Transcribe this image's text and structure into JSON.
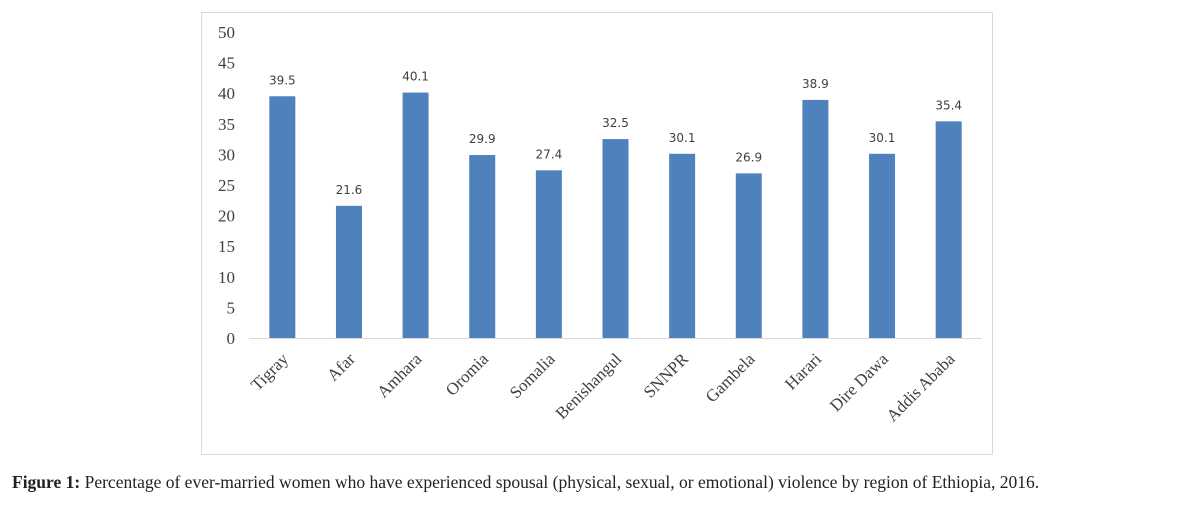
{
  "chart_data": {
    "type": "bar",
    "categories": [
      "Tigray",
      "Afar",
      "Amhara",
      "Oromia",
      "Somalia",
      "Benishangul",
      "SNNPR",
      "Gambela",
      "Harari",
      "Dire Dawa",
      "Addis Ababa"
    ],
    "values": [
      39.5,
      21.6,
      40.1,
      29.9,
      27.4,
      32.5,
      30.1,
      26.9,
      38.9,
      30.1,
      35.4
    ],
    "data_labels": [
      "39.5",
      "21.6",
      "40.1",
      "29.9",
      "27.4",
      "32.5",
      "30.1",
      "26.9",
      "38.9",
      "30.1",
      "35.4"
    ],
    "yticks": [
      "0",
      "5",
      "10",
      "15",
      "20",
      "25",
      "30",
      "35",
      "40",
      "45",
      "50"
    ],
    "ylim": [
      0,
      50
    ],
    "title": "",
    "xlabel": "",
    "ylabel": "",
    "grid": false,
    "bar_color": "#4f81bd"
  },
  "caption": {
    "label": "Figure 1:",
    "text": " Percentage of ever-married women who have experienced spousal (physical, sexual, or emotional) violence by region of Ethiopia, 2016."
  }
}
